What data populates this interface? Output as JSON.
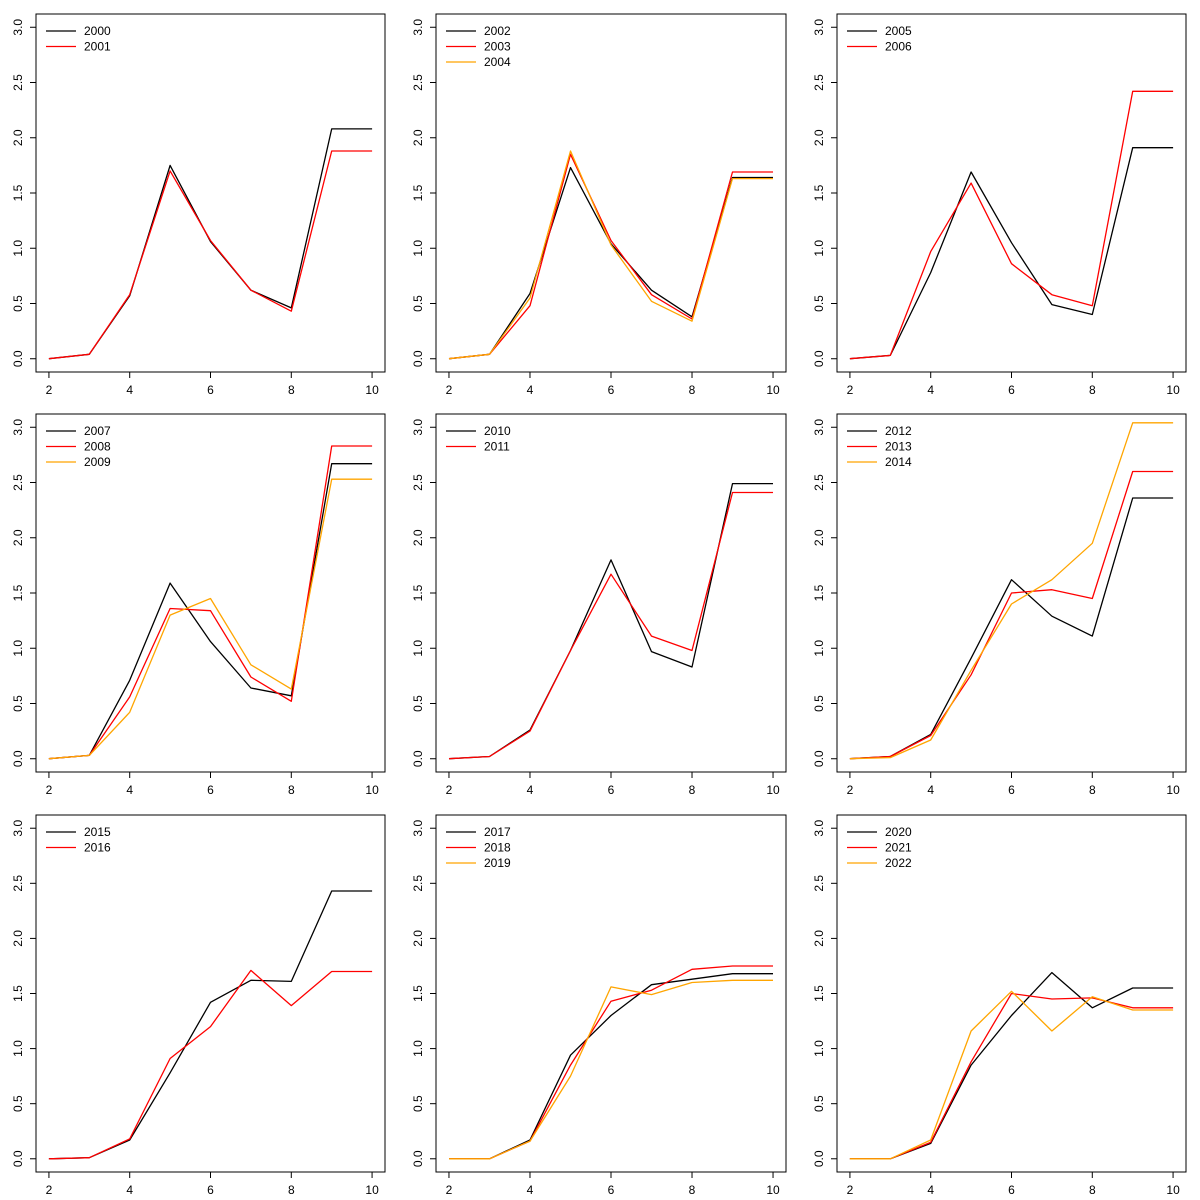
{
  "chart_data": [
    {
      "type": "line",
      "title": "",
      "xlabel": "",
      "ylabel": "",
      "xlim": [
        2,
        10
      ],
      "ylim": [
        0,
        3.0
      ],
      "xticks": [
        "2",
        "4",
        "6",
        "8",
        "10"
      ],
      "yticks": [
        "0.0",
        "0.5",
        "1.0",
        "1.5",
        "2.0",
        "2.5",
        "3.0"
      ],
      "legend_position": "top-left",
      "x": [
        2,
        3,
        4,
        5,
        6,
        7,
        8,
        9,
        10
      ],
      "series": [
        {
          "name": "2000",
          "color": "#000000",
          "values": [
            0.0,
            0.04,
            0.57,
            1.75,
            1.06,
            0.62,
            0.46,
            2.08,
            2.08
          ]
        },
        {
          "name": "2001",
          "color": "#ff0000",
          "values": [
            0.0,
            0.04,
            0.58,
            1.7,
            1.07,
            0.62,
            0.43,
            1.88,
            1.88
          ]
        }
      ]
    },
    {
      "type": "line",
      "title": "",
      "xlabel": "",
      "ylabel": "",
      "xlim": [
        2,
        10
      ],
      "ylim": [
        0,
        3.0
      ],
      "xticks": [
        "2",
        "4",
        "6",
        "8",
        "10"
      ],
      "yticks": [
        "0.0",
        "0.5",
        "1.0",
        "1.5",
        "2.0",
        "2.5",
        "3.0"
      ],
      "legend_position": "top-left",
      "x": [
        2,
        3,
        4,
        5,
        6,
        7,
        8,
        9,
        10
      ],
      "series": [
        {
          "name": "2002",
          "color": "#000000",
          "values": [
            0.0,
            0.04,
            0.59,
            1.73,
            1.04,
            0.62,
            0.38,
            1.64,
            1.64
          ]
        },
        {
          "name": "2003",
          "color": "#ff0000",
          "values": [
            0.0,
            0.04,
            0.48,
            1.85,
            1.07,
            0.58,
            0.36,
            1.69,
            1.69
          ]
        },
        {
          "name": "2004",
          "color": "#ffa500",
          "values": [
            0.0,
            0.04,
            0.55,
            1.88,
            1.03,
            0.52,
            0.34,
            1.63,
            1.63
          ]
        }
      ]
    },
    {
      "type": "line",
      "title": "",
      "xlabel": "",
      "ylabel": "",
      "xlim": [
        2,
        10
      ],
      "ylim": [
        0,
        3.0
      ],
      "xticks": [
        "2",
        "4",
        "6",
        "8",
        "10"
      ],
      "yticks": [
        "0.0",
        "0.5",
        "1.0",
        "1.5",
        "2.0",
        "2.5",
        "3.0"
      ],
      "legend_position": "top-left",
      "x": [
        2,
        3,
        4,
        5,
        6,
        7,
        8,
        9,
        10
      ],
      "series": [
        {
          "name": "2005",
          "color": "#000000",
          "values": [
            0.0,
            0.03,
            0.78,
            1.69,
            1.05,
            0.49,
            0.4,
            1.91,
            1.91
          ]
        },
        {
          "name": "2006",
          "color": "#ff0000",
          "values": [
            0.0,
            0.03,
            0.97,
            1.59,
            0.86,
            0.58,
            0.48,
            2.42,
            2.42
          ]
        }
      ]
    },
    {
      "type": "line",
      "title": "",
      "xlabel": "",
      "ylabel": "",
      "xlim": [
        2,
        10
      ],
      "ylim": [
        0,
        3.0
      ],
      "xticks": [
        "2",
        "4",
        "6",
        "8",
        "10"
      ],
      "yticks": [
        "0.0",
        "0.5",
        "1.0",
        "1.5",
        "2.0",
        "2.5",
        "3.0"
      ],
      "legend_position": "top-left",
      "x": [
        2,
        3,
        4,
        5,
        6,
        7,
        8,
        9,
        10
      ],
      "series": [
        {
          "name": "2007",
          "color": "#000000",
          "values": [
            0.0,
            0.03,
            0.71,
            1.59,
            1.06,
            0.64,
            0.57,
            2.67,
            2.67
          ]
        },
        {
          "name": "2008",
          "color": "#ff0000",
          "values": [
            0.0,
            0.03,
            0.56,
            1.36,
            1.34,
            0.74,
            0.52,
            2.83,
            2.83
          ]
        },
        {
          "name": "2009",
          "color": "#ffa500",
          "values": [
            0.0,
            0.03,
            0.42,
            1.3,
            1.45,
            0.85,
            0.63,
            2.53,
            2.53
          ]
        }
      ]
    },
    {
      "type": "line",
      "title": "",
      "xlabel": "",
      "ylabel": "",
      "xlim": [
        2,
        10
      ],
      "ylim": [
        0,
        3.0
      ],
      "xticks": [
        "2",
        "4",
        "6",
        "8",
        "10"
      ],
      "yticks": [
        "0.0",
        "0.5",
        "1.0",
        "1.5",
        "2.0",
        "2.5",
        "3.0"
      ],
      "legend_position": "top-left",
      "x": [
        2,
        3,
        4,
        5,
        6,
        7,
        8,
        9,
        10
      ],
      "series": [
        {
          "name": "2010",
          "color": "#000000",
          "values": [
            0.0,
            0.02,
            0.26,
            0.98,
            1.8,
            0.97,
            0.83,
            2.49,
            2.49
          ]
        },
        {
          "name": "2011",
          "color": "#ff0000",
          "values": [
            0.0,
            0.02,
            0.25,
            0.98,
            1.67,
            1.11,
            0.98,
            2.41,
            2.41
          ]
        }
      ]
    },
    {
      "type": "line",
      "title": "",
      "xlabel": "",
      "ylabel": "",
      "xlim": [
        2,
        10
      ],
      "ylim": [
        0,
        3.0
      ],
      "xticks": [
        "2",
        "4",
        "6",
        "8",
        "10"
      ],
      "yticks": [
        "0.0",
        "0.5",
        "1.0",
        "1.5",
        "2.0",
        "2.5",
        "3.0"
      ],
      "legend_position": "top-left",
      "x": [
        2,
        3,
        4,
        5,
        6,
        7,
        8,
        9,
        10
      ],
      "series": [
        {
          "name": "2012",
          "color": "#000000",
          "values": [
            0.0,
            0.02,
            0.22,
            0.91,
            1.62,
            1.29,
            1.11,
            2.36,
            2.36
          ]
        },
        {
          "name": "2013",
          "color": "#ff0000",
          "values": [
            0.0,
            0.02,
            0.21,
            0.76,
            1.5,
            1.53,
            1.45,
            2.6,
            2.6
          ]
        },
        {
          "name": "2014",
          "color": "#ffa500",
          "values": [
            0.0,
            0.01,
            0.17,
            0.8,
            1.4,
            1.62,
            1.95,
            3.04,
            3.04
          ]
        }
      ]
    },
    {
      "type": "line",
      "title": "",
      "xlabel": "",
      "ylabel": "",
      "xlim": [
        2,
        10
      ],
      "ylim": [
        0,
        3.0
      ],
      "xticks": [
        "2",
        "4",
        "6",
        "8",
        "10"
      ],
      "yticks": [
        "0.0",
        "0.5",
        "1.0",
        "1.5",
        "2.0",
        "2.5",
        "3.0"
      ],
      "legend_position": "top-left",
      "x": [
        2,
        3,
        4,
        5,
        6,
        7,
        8,
        9,
        10
      ],
      "series": [
        {
          "name": "2015",
          "color": "#000000",
          "values": [
            0.0,
            0.01,
            0.17,
            0.78,
            1.42,
            1.62,
            1.61,
            2.43,
            2.43
          ]
        },
        {
          "name": "2016",
          "color": "#ff0000",
          "values": [
            0.0,
            0.01,
            0.18,
            0.91,
            1.2,
            1.71,
            1.39,
            1.7,
            1.7
          ]
        }
      ]
    },
    {
      "type": "line",
      "title": "",
      "xlabel": "",
      "ylabel": "",
      "xlim": [
        2,
        10
      ],
      "ylim": [
        0,
        3.0
      ],
      "xticks": [
        "2",
        "4",
        "6",
        "8",
        "10"
      ],
      "yticks": [
        "0.0",
        "0.5",
        "1.0",
        "1.5",
        "2.0",
        "2.5",
        "3.0"
      ],
      "legend_position": "top-left",
      "x": [
        2,
        3,
        4,
        5,
        6,
        7,
        8,
        9,
        10
      ],
      "series": [
        {
          "name": "2017",
          "color": "#000000",
          "values": [
            0.0,
            0.0,
            0.17,
            0.94,
            1.3,
            1.58,
            1.63,
            1.68,
            1.68
          ]
        },
        {
          "name": "2018",
          "color": "#ff0000",
          "values": [
            0.0,
            0.0,
            0.16,
            0.85,
            1.43,
            1.53,
            1.72,
            1.75,
            1.75
          ]
        },
        {
          "name": "2019",
          "color": "#ffa500",
          "values": [
            0.0,
            0.0,
            0.16,
            0.75,
            1.56,
            1.49,
            1.6,
            1.62,
            1.62
          ]
        }
      ]
    },
    {
      "type": "line",
      "title": "",
      "xlabel": "",
      "ylabel": "",
      "xlim": [
        2,
        10
      ],
      "ylim": [
        0,
        3.0
      ],
      "xticks": [
        "2",
        "4",
        "6",
        "8",
        "10"
      ],
      "yticks": [
        "0.0",
        "0.5",
        "1.0",
        "1.5",
        "2.0",
        "2.5",
        "3.0"
      ],
      "legend_position": "top-left",
      "x": [
        2,
        3,
        4,
        5,
        6,
        7,
        8,
        9,
        10
      ],
      "series": [
        {
          "name": "2020",
          "color": "#000000",
          "values": [
            0.0,
            0.0,
            0.14,
            0.85,
            1.3,
            1.69,
            1.37,
            1.55,
            1.55
          ]
        },
        {
          "name": "2021",
          "color": "#ff0000",
          "values": [
            0.0,
            0.0,
            0.15,
            0.88,
            1.5,
            1.45,
            1.46,
            1.37,
            1.37
          ]
        },
        {
          "name": "2022",
          "color": "#ffa500",
          "values": [
            0.0,
            0.0,
            0.17,
            1.16,
            1.52,
            1.16,
            1.47,
            1.35,
            1.35
          ]
        }
      ]
    }
  ]
}
